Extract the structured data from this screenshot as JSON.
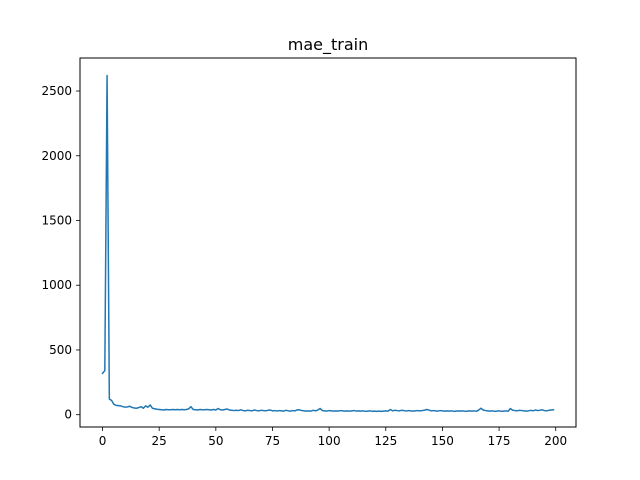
{
  "chart_data": {
    "type": "line",
    "title": "mae_train",
    "xlabel": "",
    "ylabel": "",
    "xlim": [
      -9.95,
      208.95
    ],
    "ylim": [
      -95,
      2755
    ],
    "xticks": [
      0,
      25,
      50,
      75,
      100,
      125,
      150,
      175,
      200
    ],
    "yticks": [
      0,
      500,
      1000,
      1500,
      2000,
      2500
    ],
    "grid": false,
    "legend": "none",
    "series": [
      {
        "color": "#1f77b4",
        "x": [
          0,
          1,
          2,
          3,
          4,
          5,
          6,
          7,
          8,
          9,
          10,
          11,
          12,
          13,
          14,
          15,
          16,
          17,
          18,
          19,
          20,
          21,
          22,
          23,
          24,
          25,
          26,
          27,
          28,
          29,
          30,
          31,
          32,
          33,
          34,
          35,
          36,
          37,
          38,
          39,
          40,
          41,
          42,
          43,
          44,
          45,
          46,
          47,
          48,
          49,
          50,
          51,
          52,
          53,
          54,
          55,
          56,
          57,
          58,
          59,
          60,
          61,
          62,
          63,
          64,
          65,
          66,
          67,
          68,
          69,
          70,
          71,
          72,
          73,
          74,
          75,
          76,
          77,
          78,
          79,
          80,
          81,
          82,
          83,
          84,
          85,
          86,
          87,
          88,
          89,
          90,
          91,
          92,
          93,
          94,
          95,
          96,
          97,
          98,
          99,
          100,
          101,
          102,
          103,
          104,
          105,
          106,
          107,
          108,
          109,
          110,
          111,
          112,
          113,
          114,
          115,
          116,
          117,
          118,
          119,
          120,
          121,
          122,
          123,
          124,
          125,
          126,
          127,
          128,
          129,
          130,
          131,
          132,
          133,
          134,
          135,
          136,
          137,
          138,
          139,
          140,
          141,
          142,
          143,
          144,
          145,
          146,
          147,
          148,
          149,
          150,
          151,
          152,
          153,
          154,
          155,
          156,
          157,
          158,
          159,
          160,
          161,
          162,
          163,
          164,
          165,
          166,
          167,
          168,
          169,
          170,
          171,
          172,
          173,
          174,
          175,
          176,
          177,
          178,
          179,
          180,
          181,
          182,
          183,
          184,
          185,
          186,
          187,
          188,
          189,
          190,
          191,
          192,
          193,
          194,
          195,
          196,
          197,
          198,
          199
        ],
        "y": [
          320,
          340,
          2620,
          120,
          110,
          80,
          72,
          70,
          68,
          62,
          58,
          60,
          65,
          56,
          52,
          50,
          55,
          62,
          50,
          68,
          58,
          75,
          50,
          46,
          42,
          40,
          38,
          36,
          40,
          38,
          38,
          40,
          38,
          40,
          38,
          40,
          38,
          40,
          45,
          62,
          40,
          38,
          36,
          40,
          38,
          38,
          40,
          38,
          36,
          40,
          36,
          48,
          38,
          36,
          40,
          44,
          36,
          34,
          32,
          34,
          32,
          38,
          32,
          30,
          34,
          32,
          30,
          36,
          32,
          30,
          34,
          32,
          30,
          34,
          36,
          30,
          32,
          28,
          32,
          30,
          28,
          34,
          30,
          28,
          32,
          30,
          38,
          36,
          32,
          30,
          28,
          30,
          28,
          34,
          30,
          36,
          48,
          32,
          30,
          28,
          32,
          30,
          28,
          30,
          28,
          32,
          30,
          28,
          30,
          28,
          30,
          32,
          28,
          30,
          28,
          30,
          26,
          28,
          30,
          26,
          28,
          26,
          28,
          26,
          28,
          30,
          28,
          40,
          30,
          34,
          32,
          30,
          34,
          32,
          28,
          32,
          30,
          28,
          30,
          32,
          30,
          32,
          34,
          40,
          36,
          30,
          32,
          30,
          28,
          32,
          30,
          28,
          30,
          28,
          30,
          26,
          28,
          30,
          28,
          30,
          26,
          28,
          30,
          28,
          30,
          26,
          36,
          50,
          36,
          32,
          30,
          28,
          30,
          26,
          28,
          30,
          26,
          28,
          30,
          26,
          48,
          34,
          32,
          30,
          34,
          32,
          30,
          28,
          30,
          34,
          30,
          36,
          32,
          34,
          38,
          32,
          30,
          34,
          36,
          38
        ]
      }
    ]
  }
}
